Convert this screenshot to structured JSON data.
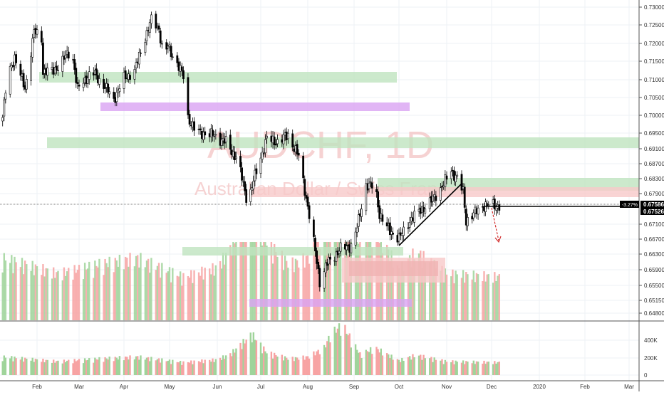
{
  "chart_data": {
    "type": "candlestick",
    "symbol": "AUDCHF, 1D",
    "description": "Australian Dollar / Swiss Franc",
    "price_axis_ticks": [
      "0.73000",
      "0.72500",
      "0.72000",
      "0.71500",
      "0.71000",
      "0.70500",
      "0.70000",
      "0.69500",
      "0.69100",
      "0.68700",
      "0.68300",
      "0.67900",
      "0.67100",
      "0.66700",
      "0.66300",
      "0.65900",
      "0.65500",
      "0.65150",
      "0.64800"
    ],
    "volume_axis_ticks": [
      "400K",
      "200K",
      "0"
    ],
    "time_axis_ticks": [
      "Feb",
      "Mar",
      "Apr",
      "May",
      "Jun",
      "Jul",
      "Aug",
      "Sep",
      "Oct",
      "Nov",
      "Dec",
      "2020",
      "Feb",
      "Mar"
    ],
    "last_price_label": "0.67586",
    "second_price_label": "0.67526",
    "change_label": "-3.27%",
    "colors": {
      "up_volume": "#9fd49a",
      "down_volume": "#f7a3a3",
      "green_zone": "#bfe3bf",
      "purple_zone": "#d9a3f2",
      "pink_zone": "#f7c9c9",
      "arrow": "#d32f2f"
    },
    "close_series": [
      [
        "2019-01-09",
        0.6994
      ],
      [
        "2019-01-12",
        0.7104
      ],
      [
        "2019-01-17",
        0.7162
      ],
      [
        "2019-01-24",
        0.7074
      ],
      [
        "2019-01-30",
        0.7232
      ],
      [
        "2019-02-04",
        0.7212
      ],
      [
        "2019-02-05",
        0.7123
      ],
      [
        "2019-02-12",
        0.7123
      ],
      [
        "2019-02-24",
        0.7182
      ],
      [
        "2019-02-28",
        0.7074
      ],
      [
        "2019-03-10",
        0.7123
      ],
      [
        "2019-03-20",
        0.7074
      ],
      [
        "2019-03-25",
        0.7044
      ],
      [
        "2019-04-01",
        0.7104
      ],
      [
        "2019-04-08",
        0.7123
      ],
      [
        "2019-04-13",
        0.7192
      ],
      [
        "2019-04-19",
        0.7264
      ],
      [
        "2019-04-24",
        0.7241
      ],
      [
        "2019-04-27",
        0.7162
      ],
      [
        "2019-04-30",
        0.7192
      ],
      [
        "2019-05-06",
        0.7142
      ],
      [
        "2019-05-12",
        0.7094
      ],
      [
        "2019-05-13",
        0.6994
      ],
      [
        "2019-05-18",
        0.6954
      ],
      [
        "2019-05-29",
        0.6945
      ],
      [
        "2019-06-07",
        0.6927
      ],
      [
        "2019-06-15",
        0.688
      ],
      [
        "2019-06-22",
        0.6766
      ],
      [
        "2019-06-28",
        0.6851
      ],
      [
        "2019-07-05",
        0.6936
      ],
      [
        "2019-07-12",
        0.6927
      ],
      [
        "2019-07-19",
        0.6945
      ],
      [
        "2019-07-26",
        0.6889
      ],
      [
        "2019-08-01",
        0.6756
      ],
      [
        "2019-08-05",
        0.6661
      ],
      [
        "2019-08-09",
        0.6561
      ],
      [
        "2019-08-14",
        0.6606
      ],
      [
        "2019-08-23",
        0.6644
      ],
      [
        "2019-08-31",
        0.6654
      ],
      [
        "2019-09-04",
        0.6719
      ],
      [
        "2019-09-09",
        0.6813
      ],
      [
        "2019-09-15",
        0.6809
      ],
      [
        "2019-09-18",
        0.6737
      ],
      [
        "2019-09-23",
        0.67
      ],
      [
        "2019-10-01",
        0.6671
      ],
      [
        "2019-10-08",
        0.6719
      ],
      [
        "2019-10-15",
        0.6747
      ],
      [
        "2019-10-21",
        0.6766
      ],
      [
        "2019-10-28",
        0.6803
      ],
      [
        "2019-11-04",
        0.6851
      ],
      [
        "2019-11-08",
        0.6832
      ],
      [
        "2019-11-12",
        0.6794
      ],
      [
        "2019-11-14",
        0.6719
      ],
      [
        "2019-11-19",
        0.6737
      ],
      [
        "2019-11-26",
        0.676
      ],
      [
        "2019-12-05",
        0.6759
      ]
    ],
    "volume_series_k": [
      [
        "2019-01-09",
        200
      ],
      [
        "2019-02-15",
        150
      ],
      [
        "2019-03-15",
        180
      ],
      [
        "2019-04-10",
        200
      ],
      [
        "2019-05-10",
        140
      ],
      [
        "2019-06-01",
        170
      ],
      [
        "2019-06-10",
        230
      ],
      [
        "2019-06-25",
        450
      ],
      [
        "2019-07-05",
        250
      ],
      [
        "2019-07-20",
        180
      ],
      [
        "2019-08-01",
        200
      ],
      [
        "2019-08-12",
        300
      ],
      [
        "2019-08-16",
        440
      ],
      [
        "2019-08-24",
        560
      ],
      [
        "2019-09-05",
        230
      ],
      [
        "2019-09-15",
        300
      ],
      [
        "2019-10-01",
        160
      ],
      [
        "2019-10-12",
        220
      ],
      [
        "2019-11-01",
        150
      ],
      [
        "2019-12-05",
        140
      ]
    ]
  }
}
